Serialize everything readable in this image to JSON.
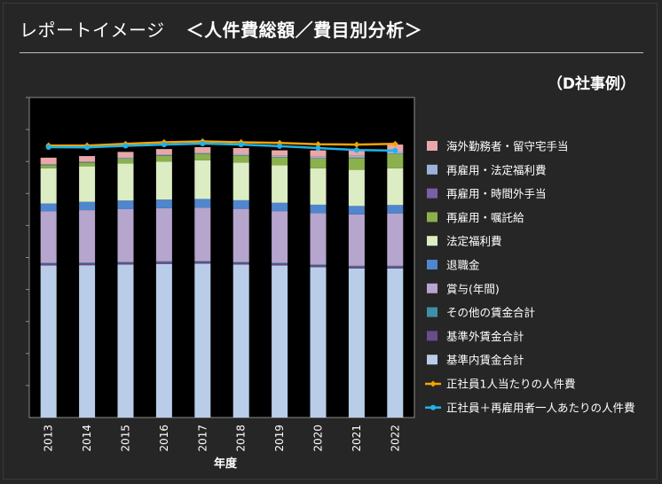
{
  "header": {
    "title": "レポートイメージ",
    "subtitle": "＜人件費総額／費目別分析＞",
    "case_label": "（D社事例）"
  },
  "chart_data": {
    "type": "bar",
    "stacked": true,
    "xlabel": "年度",
    "categories": [
      "2013",
      "2014",
      "2015",
      "2016",
      "2017",
      "2018",
      "2019",
      "2020",
      "2021",
      "2022"
    ],
    "ylim": [
      0,
      100
    ],
    "grid": false,
    "legend_position": "right",
    "series": [
      {
        "name": "基準内賃金合計",
        "kind": "bar",
        "color": "#b9cde8",
        "values": [
          47.5,
          47.6,
          47.8,
          48.0,
          48.1,
          47.8,
          47.5,
          47.0,
          46.6,
          46.6
        ]
      },
      {
        "name": "基準外賃金合計",
        "kind": "bar",
        "color": "#6a4b8c",
        "values": [
          0.6,
          0.6,
          0.6,
          0.6,
          0.6,
          0.6,
          0.6,
          0.6,
          0.6,
          0.6
        ]
      },
      {
        "name": "その他の賃金合計",
        "kind": "bar",
        "color": "#3f8fa8",
        "values": [
          0.2,
          0.2,
          0.2,
          0.2,
          0.2,
          0.2,
          0.2,
          0.2,
          0.2,
          0.2
        ]
      },
      {
        "name": "賞与(年間)",
        "kind": "bar",
        "color": "#b6a5cc",
        "values": [
          16.1,
          16.4,
          16.5,
          16.6,
          16.7,
          16.6,
          16.2,
          16.1,
          16.1,
          16.4
        ]
      },
      {
        "name": "退職金",
        "kind": "bar",
        "color": "#4f86cd",
        "values": [
          2.5,
          2.6,
          2.7,
          2.7,
          2.7,
          2.7,
          2.6,
          2.6,
          2.6,
          2.6
        ]
      },
      {
        "name": "法定福利費",
        "kind": "bar",
        "color": "#dcecc3",
        "values": [
          11.0,
          11.1,
          11.6,
          11.9,
          12.1,
          11.8,
          11.7,
          11.4,
          11.3,
          11.5
        ]
      },
      {
        "name": "再雇用・嘱託給",
        "kind": "bar",
        "color": "#8ab14b",
        "values": [
          1.0,
          1.2,
          1.5,
          1.8,
          2.0,
          2.2,
          2.5,
          3.0,
          3.7,
          4.4
        ]
      },
      {
        "name": "再雇用・時間外手当",
        "kind": "bar",
        "color": "#7a5fa6",
        "values": [
          0.1,
          0.1,
          0.1,
          0.1,
          0.1,
          0.1,
          0.1,
          0.1,
          0.1,
          0.1
        ]
      },
      {
        "name": "再雇用・法定福利費",
        "kind": "bar",
        "color": "#9bb3d8",
        "values": [
          0.2,
          0.2,
          0.3,
          0.3,
          0.3,
          0.4,
          0.4,
          0.5,
          0.6,
          0.7
        ]
      },
      {
        "name": "海外勤務者・留守宅手当",
        "kind": "bar",
        "color": "#e9a7a9",
        "values": [
          2.0,
          1.7,
          1.7,
          1.7,
          1.7,
          1.8,
          1.7,
          2.0,
          2.0,
          2.2
        ]
      },
      {
        "name": "正社員1人当たりの人件費",
        "kind": "line",
        "color": "#f5a300",
        "values": [
          85.0,
          85.0,
          85.5,
          86.0,
          86.3,
          86.0,
          85.8,
          85.4,
          85.3,
          85.5
        ]
      },
      {
        "name": "正社員＋再雇用者一人あたりの人件費",
        "kind": "line",
        "color": "#1fb4e8",
        "values": [
          84.5,
          84.4,
          84.9,
          85.3,
          85.6,
          85.3,
          84.8,
          84.2,
          83.6,
          83.4
        ]
      }
    ]
  }
}
